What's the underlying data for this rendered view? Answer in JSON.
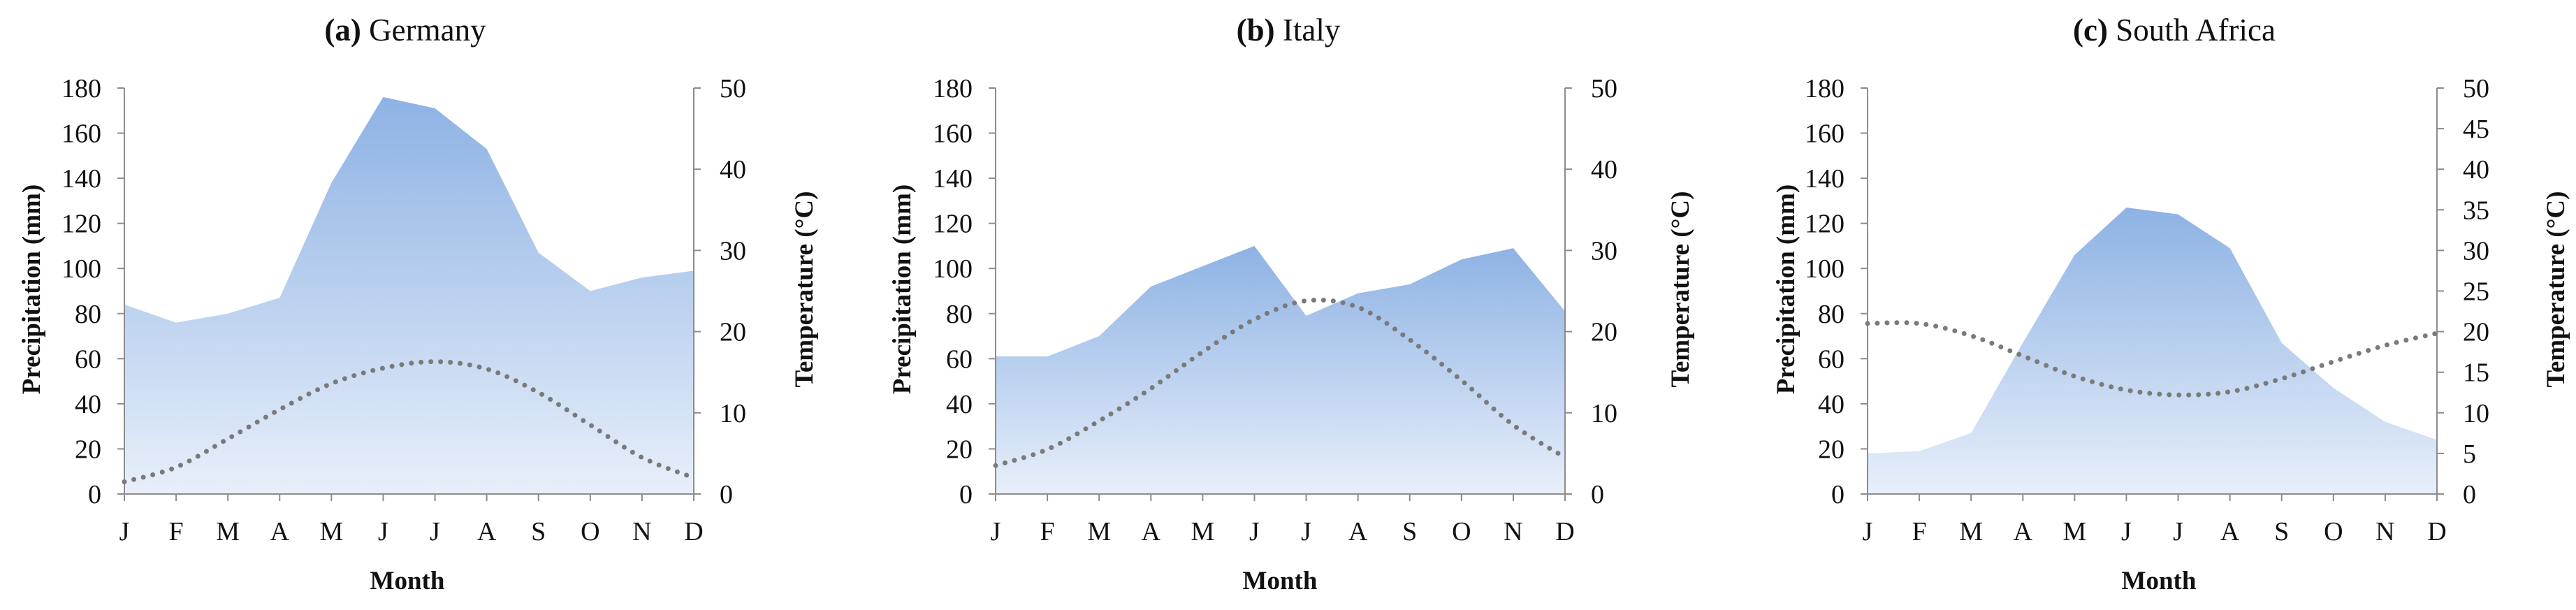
{
  "colors": {
    "area_top": "#8db2e4",
    "area_bottom": "#e8effa",
    "temperature_line": "#7a7a7a",
    "axis": "#8c8c8c"
  },
  "chart_data": [
    {
      "type": "area",
      "title_prefix": "(a)",
      "title": "Germany",
      "xlabel": "Month",
      "ylabel": "Precipitation (mm)",
      "y2label": "Temperature (°C)",
      "categories": [
        "J",
        "F",
        "M",
        "A",
        "M",
        "J",
        "J",
        "A",
        "S",
        "O",
        "N",
        "D"
      ],
      "ylim": [
        0,
        180
      ],
      "yticks": [
        0,
        20,
        40,
        60,
        80,
        100,
        120,
        140,
        160,
        180
      ],
      "y2lim": [
        0,
        50
      ],
      "y2ticks": [
        0,
        10,
        20,
        30,
        40,
        50
      ],
      "series": [
        {
          "type": "area",
          "axis": "left",
          "values": [
            84,
            76,
            80,
            87,
            138,
            176,
            171,
            153,
            107,
            90,
            96,
            99
          ]
        },
        {
          "type": "line",
          "style": "dotted",
          "axis": "right",
          "values": [
            1.5,
            3.3,
            6.8,
            10.4,
            13.6,
            15.5,
            16.3,
            15.4,
            12.5,
            8.5,
            4.5,
            2.0
          ]
        }
      ],
      "grid": false
    },
    {
      "type": "area",
      "title_prefix": "(b)",
      "title": "Italy",
      "xlabel": "Month",
      "ylabel": "Precipitation (mm)",
      "y2label": "Temperature (°C)",
      "categories": [
        "J",
        "F",
        "M",
        "A",
        "M",
        "J",
        "J",
        "A",
        "S",
        "O",
        "N",
        "D"
      ],
      "ylim": [
        0,
        180
      ],
      "yticks": [
        0,
        20,
        40,
        60,
        80,
        100,
        120,
        140,
        160,
        180
      ],
      "y2lim": [
        0,
        50
      ],
      "y2ticks": [
        0,
        10,
        20,
        30,
        40,
        50
      ],
      "series": [
        {
          "type": "area",
          "axis": "left",
          "values": [
            61,
            61,
            70,
            92,
            101,
            110,
            79,
            89,
            93,
            104,
            109,
            81
          ]
        },
        {
          "type": "line",
          "style": "dotted",
          "axis": "right",
          "values": [
            3.5,
            5.5,
            9.0,
            13.0,
            17.5,
            21.5,
            23.8,
            23.0,
            19.0,
            14.0,
            8.5,
            4.5
          ]
        }
      ],
      "grid": false
    },
    {
      "type": "area",
      "title_prefix": "(c)",
      "title": "South Africa",
      "xlabel": "Month",
      "ylabel": "Precipitation (mm)",
      "y2label": "Temperature (°C)",
      "categories": [
        "J",
        "F",
        "M",
        "A",
        "M",
        "J",
        "J",
        "A",
        "S",
        "O",
        "N",
        "D"
      ],
      "ylim": [
        0,
        180
      ],
      "yticks": [
        0,
        20,
        40,
        60,
        80,
        100,
        120,
        140,
        160,
        180
      ],
      "y2lim": [
        0,
        50
      ],
      "y2ticks": [
        0,
        5,
        10,
        15,
        20,
        25,
        30,
        35,
        40,
        45,
        50
      ],
      "series": [
        {
          "type": "area",
          "axis": "left",
          "values": [
            18,
            19,
            27,
            67,
            106,
            127,
            124,
            109,
            67,
            47,
            32,
            24
          ]
        },
        {
          "type": "line",
          "style": "dotted",
          "axis": "right",
          "values": [
            21.0,
            21.0,
            19.5,
            17.0,
            14.5,
            12.8,
            12.2,
            12.6,
            14.2,
            16.3,
            18.3,
            19.8
          ]
        }
      ],
      "grid": false
    }
  ]
}
